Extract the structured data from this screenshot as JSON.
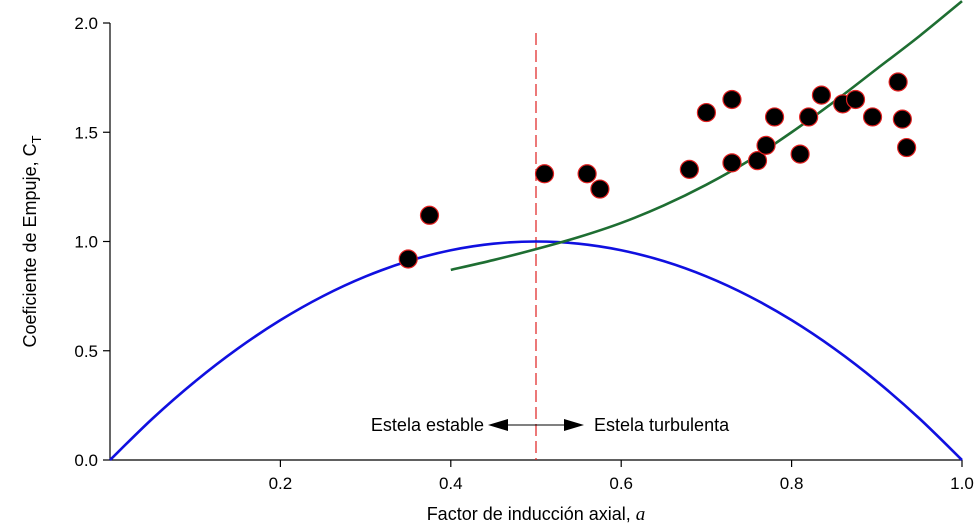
{
  "chart_data": {
    "type": "scatter",
    "title": "",
    "xlabel": "Factor de inducción axial, ",
    "xlabel_var": "a",
    "ylabel": "Coeficiente de Empuje, C",
    "ylabel_sub": "T",
    "xlim": [
      0,
      1.0
    ],
    "ylim": [
      0,
      2.0
    ],
    "xticks": [
      0.2,
      0.4,
      0.6,
      0.8,
      1.0
    ],
    "xtick_labels": [
      "0.2",
      "0.4",
      "0.6",
      "0.8",
      "1.0"
    ],
    "yticks": [
      0.0,
      0.5,
      1.0,
      1.5,
      2.0
    ],
    "ytick_labels": [
      "0.0",
      "0.5",
      "1.0",
      "1.5",
      "2.0"
    ],
    "grid": false,
    "divider_x": 0.5,
    "divider_color": "#e02020",
    "annotations": {
      "left": "Estela estable",
      "right": "Estela turbulenta",
      "arrow_y": 0.16
    },
    "series": [
      {
        "kind": "line",
        "color": "#1010e0",
        "x": [
          0,
          0.05,
          0.1,
          0.15,
          0.2,
          0.25,
          0.3,
          0.35,
          0.4,
          0.45,
          0.5,
          0.55,
          0.6,
          0.65,
          0.7,
          0.75,
          0.8,
          0.85,
          0.9,
          0.95,
          1.0
        ],
        "y": [
          0,
          0.19,
          0.36,
          0.51,
          0.64,
          0.75,
          0.84,
          0.91,
          0.96,
          0.99,
          1.0,
          0.99,
          0.96,
          0.91,
          0.84,
          0.75,
          0.64,
          0.51,
          0.36,
          0.19,
          0
        ]
      },
      {
        "kind": "line",
        "color": "#1e6e32",
        "x": [
          0.4,
          0.45,
          0.5,
          0.55,
          0.6,
          0.65,
          0.7,
          0.75,
          0.8,
          0.85,
          0.9,
          0.95,
          1.0
        ],
        "y": [
          0.87,
          0.915,
          0.965,
          1.02,
          1.085,
          1.165,
          1.26,
          1.37,
          1.5,
          1.64,
          1.79,
          1.94,
          2.1
        ]
      },
      {
        "kind": "scatter",
        "color": "#000000",
        "edge_color": "#e02020",
        "x": [
          0.35,
          0.375,
          0.51,
          0.56,
          0.575,
          0.68,
          0.7,
          0.73,
          0.73,
          0.76,
          0.77,
          0.78,
          0.81,
          0.82,
          0.835,
          0.86,
          0.875,
          0.895,
          0.925,
          0.93,
          0.935
        ],
        "y": [
          0.92,
          1.12,
          1.31,
          1.31,
          1.24,
          1.33,
          1.59,
          1.36,
          1.65,
          1.37,
          1.44,
          1.57,
          1.4,
          1.57,
          1.67,
          1.63,
          1.65,
          1.57,
          1.73,
          1.56,
          1.43
        ]
      }
    ]
  }
}
